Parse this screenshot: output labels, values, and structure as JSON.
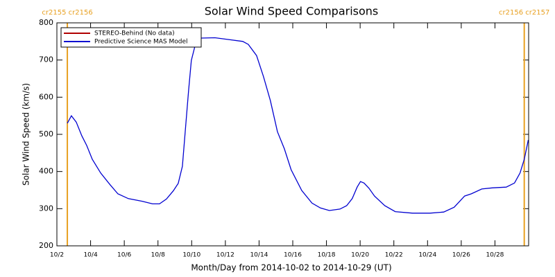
{
  "chart_data": {
    "type": "line",
    "title": "Solar Wind Speed Comparisons",
    "ylabel": "Solar Wind Speed (km/s)",
    "xlabel": "Month/Day from 2014-10-02 to 2014-10-29 (UT)",
    "xlim": [
      2,
      30
    ],
    "xticks": [
      {
        "value": 2,
        "label": "10/2"
      },
      {
        "value": 4,
        "label": "10/4"
      },
      {
        "value": 6,
        "label": "10/6"
      },
      {
        "value": 8,
        "label": "10/8"
      },
      {
        "value": 10,
        "label": "10/10"
      },
      {
        "value": 12,
        "label": "10/12"
      },
      {
        "value": 14,
        "label": "10/14"
      },
      {
        "value": 16,
        "label": "10/16"
      },
      {
        "value": 18,
        "label": "10/18"
      },
      {
        "value": 20,
        "label": "10/20"
      },
      {
        "value": 22,
        "label": "10/22"
      },
      {
        "value": 24,
        "label": "10/24"
      },
      {
        "value": 26,
        "label": "10/26"
      },
      {
        "value": 28,
        "label": "10/28"
      }
    ],
    "ylim": [
      200,
      800
    ],
    "yticks": [
      200,
      300,
      400,
      500,
      600,
      700,
      800
    ],
    "legend": "upper left",
    "annotations": [
      {
        "x": 2.62,
        "label": "cr2155 cr2156",
        "color": "#e8a020"
      },
      {
        "x": 29.74,
        "label": "cr2156 cr2157",
        "color": "#e8a020"
      }
    ],
    "series": [
      {
        "name": "STEREO-Behind (No data)",
        "color": "#b00000",
        "x": [],
        "values": []
      },
      {
        "name": "Predictive Science MAS Model",
        "color": "#0000d0",
        "x": [
          2.62,
          2.86,
          3.15,
          3.48,
          3.77,
          4.1,
          4.6,
          5.13,
          5.62,
          6.24,
          7.06,
          7.68,
          8.09,
          8.5,
          8.91,
          9.2,
          9.45,
          9.65,
          9.82,
          9.98,
          10.23,
          10.56,
          11.38,
          12.2,
          13.03,
          13.36,
          13.85,
          14.26,
          14.67,
          15.09,
          15.5,
          15.9,
          16.53,
          17.14,
          17.64,
          18.17,
          18.8,
          19.2,
          19.53,
          19.82,
          20.02,
          20.23,
          20.52,
          20.85,
          21.46,
          22.08,
          23.11,
          24.14,
          24.96,
          25.58,
          26.2,
          26.6,
          27.22,
          27.84,
          28.67,
          29.16,
          29.49,
          29.74,
          29.98
        ],
        "values": [
          530,
          550,
          533,
          496,
          470,
          433,
          396,
          366,
          340,
          327,
          320,
          313,
          313,
          326,
          348,
          368,
          414,
          526,
          619,
          699,
          744,
          759,
          760,
          755,
          750,
          742,
          712,
          656,
          591,
          507,
          461,
          405,
          349,
          315,
          302,
          295,
          299,
          308,
          327,
          358,
          373,
          369,
          355,
          334,
          308,
          292,
          288,
          288,
          291,
          304,
          334,
          340,
          353,
          356,
          358,
          369,
          396,
          433,
          485
        ]
      }
    ]
  }
}
